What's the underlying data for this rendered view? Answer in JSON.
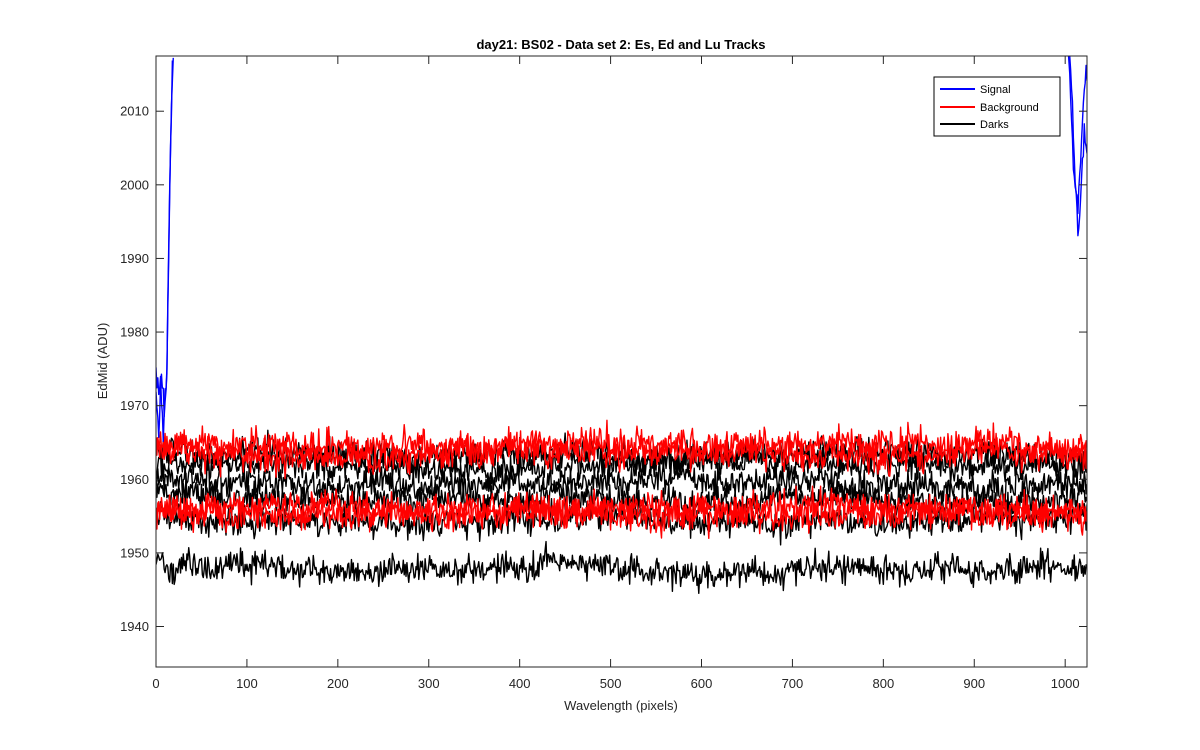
{
  "chart_data": {
    "type": "line",
    "title": "day21: BS02 - Data set 2: Es, Ed and Lu Tracks",
    "xlabel": "Wavelength (pixels)",
    "ylabel": "EdMid (ADU)",
    "xlim": [
      0,
      1024
    ],
    "ylim": [
      1934.5,
      2017.5
    ],
    "xticks": [
      0,
      100,
      200,
      300,
      400,
      500,
      600,
      700,
      800,
      900,
      1000
    ],
    "xtick_labels": [
      "0",
      "100",
      "200",
      "300",
      "400",
      "500",
      "600",
      "700",
      "800",
      "900",
      "1000"
    ],
    "yticks": [
      1940,
      1950,
      1960,
      1970,
      1980,
      1990,
      2000,
      2010
    ],
    "ytick_labels": [
      "1940",
      "1950",
      "1960",
      "1970",
      "1980",
      "1990",
      "2000",
      "2010"
    ],
    "grid": false,
    "legend_position": "top-right",
    "legend": [
      {
        "label": "Signal",
        "color": "#0000ff"
      },
      {
        "label": "Background",
        "color": "#ff0000"
      },
      {
        "label": "Darks",
        "color": "#000000"
      }
    ],
    "series": [
      {
        "name": "Signal",
        "color": "#0000ff",
        "noise": 1.2,
        "points": [
          [
            0,
            1975
          ],
          [
            3,
            1970
          ],
          [
            5,
            1973
          ],
          [
            8,
            1966
          ],
          [
            10,
            1971
          ],
          [
            12,
            1976
          ],
          [
            14,
            1990
          ],
          [
            16,
            2005
          ],
          [
            18,
            2018
          ]
        ]
      },
      {
        "name": "Signal",
        "color": "#0000ff",
        "noise": 1.0,
        "points": [
          [
            0,
            1972
          ],
          [
            3,
            1967
          ],
          [
            6,
            1974
          ],
          [
            9,
            1969
          ],
          [
            12,
            1975
          ],
          [
            14,
            1992
          ],
          [
            17,
            2012
          ],
          [
            19,
            2018
          ]
        ]
      },
      {
        "name": "Signal",
        "color": "#0000ff",
        "noise": 0.8,
        "points": [
          [
            1003,
            2018
          ],
          [
            1006,
            2012
          ],
          [
            1009,
            2003
          ],
          [
            1012,
            1998
          ],
          [
            1015,
            1993
          ],
          [
            1018,
            2002
          ],
          [
            1021,
            2008
          ],
          [
            1024,
            2004
          ]
        ]
      },
      {
        "name": "Signal",
        "color": "#0000ff",
        "noise": 0.8,
        "points": [
          [
            1005,
            2018
          ],
          [
            1008,
            2010
          ],
          [
            1011,
            2000
          ],
          [
            1014,
            1996
          ],
          [
            1017,
            2004
          ],
          [
            1020,
            2011
          ],
          [
            1023,
            2016
          ],
          [
            1024,
            2014
          ]
        ]
      },
      {
        "name": "Background",
        "color": "#ff0000",
        "noise": 1.3,
        "points": [
          [
            0,
            1964.5
          ],
          [
            150,
            1965
          ],
          [
            300,
            1964
          ],
          [
            450,
            1965
          ],
          [
            600,
            1964.5
          ],
          [
            750,
            1965
          ],
          [
            900,
            1964.5
          ],
          [
            1024,
            1965
          ]
        ]
      },
      {
        "name": "Background",
        "color": "#ff0000",
        "noise": 1.3,
        "points": [
          [
            0,
            1963.5
          ],
          [
            150,
            1963
          ],
          [
            300,
            1963.5
          ],
          [
            450,
            1964
          ],
          [
            600,
            1963.5
          ],
          [
            750,
            1963
          ],
          [
            900,
            1963.5
          ],
          [
            1024,
            1963.5
          ]
        ]
      },
      {
        "name": "Background",
        "color": "#ff0000",
        "noise": 1.3,
        "points": [
          [
            0,
            1956
          ],
          [
            150,
            1956.5
          ],
          [
            300,
            1955.5
          ],
          [
            450,
            1956
          ],
          [
            600,
            1956
          ],
          [
            750,
            1956.5
          ],
          [
            900,
            1955.5
          ],
          [
            1024,
            1956
          ]
        ]
      },
      {
        "name": "Background",
        "color": "#ff0000",
        "noise": 1.3,
        "points": [
          [
            0,
            1955
          ],
          [
            150,
            1955.5
          ],
          [
            300,
            1955
          ],
          [
            450,
            1955.5
          ],
          [
            600,
            1955
          ],
          [
            750,
            1955
          ],
          [
            900,
            1955.5
          ],
          [
            1024,
            1955
          ]
        ]
      },
      {
        "name": "Darks",
        "color": "#000000",
        "noise": 1.2,
        "points": [
          [
            0,
            1948.5
          ],
          [
            150,
            1948
          ],
          [
            300,
            1947.5
          ],
          [
            450,
            1948.5
          ],
          [
            600,
            1947
          ],
          [
            750,
            1948
          ],
          [
            900,
            1947.5
          ],
          [
            1024,
            1948.5
          ]
        ]
      },
      {
        "name": "Darks",
        "color": "#000000",
        "noise": 1.2,
        "points": [
          [
            0,
            1955
          ],
          [
            150,
            1954.5
          ],
          [
            300,
            1954
          ],
          [
            450,
            1955
          ],
          [
            600,
            1954.5
          ],
          [
            750,
            1954
          ],
          [
            900,
            1954.5
          ],
          [
            1024,
            1955
          ]
        ]
      },
      {
        "name": "Darks",
        "color": "#000000",
        "noise": 1.2,
        "points": [
          [
            0,
            1958
          ],
          [
            150,
            1957.5
          ],
          [
            300,
            1957
          ],
          [
            450,
            1957.5
          ],
          [
            600,
            1957
          ],
          [
            750,
            1957.5
          ],
          [
            900,
            1957
          ],
          [
            1024,
            1957.5
          ]
        ]
      },
      {
        "name": "Darks",
        "color": "#000000",
        "noise": 1.2,
        "points": [
          [
            0,
            1960
          ],
          [
            150,
            1959.5
          ],
          [
            300,
            1959
          ],
          [
            450,
            1959.5
          ],
          [
            600,
            1960
          ],
          [
            750,
            1959.5
          ],
          [
            900,
            1959
          ],
          [
            1024,
            1959.5
          ]
        ]
      },
      {
        "name": "Darks",
        "color": "#000000",
        "noise": 1.2,
        "points": [
          [
            0,
            1962
          ],
          [
            150,
            1962
          ],
          [
            300,
            1961.5
          ],
          [
            450,
            1962
          ],
          [
            600,
            1962.5
          ],
          [
            750,
            1962
          ],
          [
            900,
            1962
          ],
          [
            1024,
            1962
          ]
        ]
      },
      {
        "name": "Darks",
        "color": "#000000",
        "noise": 1.2,
        "points": [
          [
            0,
            1963.5
          ],
          [
            150,
            1963.5
          ],
          [
            300,
            1963
          ],
          [
            450,
            1963.5
          ],
          [
            600,
            1963
          ],
          [
            750,
            1963.5
          ],
          [
            900,
            1963.5
          ],
          [
            1024,
            1963
          ]
        ]
      }
    ]
  }
}
